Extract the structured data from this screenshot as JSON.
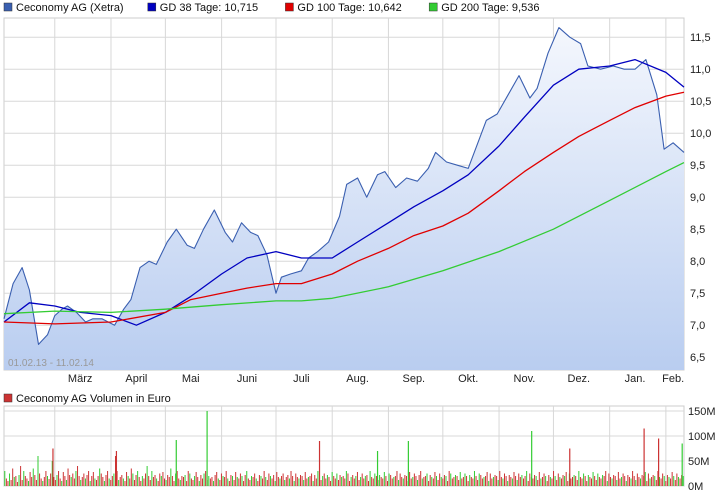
{
  "chart_data": [
    {
      "type": "line",
      "legend": [
        {
          "label": "Ceconomy AG (Xetra)",
          "color": "#3a5fb0"
        },
        {
          "label": "GD 38 Tage: 10,715",
          "color": "#0000c0"
        },
        {
          "label": "GD 100 Tage: 10,642",
          "color": "#e00000"
        },
        {
          "label": "GD 200 Tage: 9,536",
          "color": "#33cc33"
        }
      ],
      "date_range_label": "01.02.13 - 11.02.14",
      "x_ticks": [
        "März",
        "April",
        "Mai",
        "Juni",
        "Juli",
        "Aug.",
        "Sep.",
        "Okt.",
        "Nov.",
        "Dez.",
        "Jan.",
        "Feb."
      ],
      "y_ticks": [
        "6,5",
        "7,0",
        "7,5",
        "8,0",
        "8,5",
        "9,0",
        "9,5",
        "10,0",
        "10,5",
        "11,0",
        "11,5"
      ],
      "ylim": [
        6.3,
        11.8
      ],
      "grid": true,
      "series": [
        {
          "name": "Ceconomy AG (Xetra)",
          "color": "#3a5fb0",
          "x": [
            "2013-02-01",
            "2013-02-06",
            "2013-02-11",
            "2013-02-15",
            "2013-02-20",
            "2013-02-25",
            "2013-03-01",
            "2013-03-05",
            "2013-03-08",
            "2013-03-13",
            "2013-03-18",
            "2013-03-22",
            "2013-03-27",
            "2013-04-03",
            "2013-04-08",
            "2013-04-12",
            "2013-04-17",
            "2013-04-22",
            "2013-04-26",
            "2013-05-02",
            "2013-05-07",
            "2013-05-13",
            "2013-05-17",
            "2013-05-22",
            "2013-05-28",
            "2013-06-03",
            "2013-06-07",
            "2013-06-12",
            "2013-06-17",
            "2013-06-21",
            "2013-06-26",
            "2013-07-01",
            "2013-07-04",
            "2013-07-09",
            "2013-07-15",
            "2013-07-19",
            "2013-07-24",
            "2013-07-30",
            "2013-08-05",
            "2013-08-09",
            "2013-08-15",
            "2013-08-20",
            "2013-08-26",
            "2013-08-30",
            "2013-09-05",
            "2013-09-11",
            "2013-09-17",
            "2013-09-23",
            "2013-09-27",
            "2013-10-03",
            "2013-10-09",
            "2013-10-15",
            "2013-10-21",
            "2013-10-25",
            "2013-10-31",
            "2013-11-06",
            "2013-11-12",
            "2013-11-18",
            "2013-11-22",
            "2013-11-28",
            "2013-12-04",
            "2013-12-10",
            "2013-12-16",
            "2013-12-20",
            "2013-12-27",
            "2014-01-03",
            "2014-01-09",
            "2014-01-15",
            "2014-01-21",
            "2014-01-27",
            "2014-01-31",
            "2014-02-05",
            "2014-02-11"
          ],
          "values": [
            7.1,
            7.65,
            7.9,
            7.55,
            6.7,
            6.85,
            7.15,
            7.25,
            7.3,
            7.2,
            7.05,
            7.1,
            7.1,
            7.0,
            7.25,
            7.4,
            7.9,
            8.0,
            7.95,
            8.3,
            8.5,
            8.25,
            8.2,
            8.5,
            8.8,
            8.45,
            8.3,
            8.6,
            8.45,
            8.4,
            8.1,
            7.5,
            7.75,
            7.8,
            7.85,
            8.05,
            8.15,
            8.3,
            8.7,
            9.2,
            9.3,
            9.0,
            9.35,
            9.4,
            9.15,
            9.3,
            9.25,
            9.45,
            9.7,
            9.55,
            9.5,
            9.45,
            9.9,
            10.2,
            10.3,
            10.6,
            10.9,
            10.55,
            10.7,
            11.25,
            11.65,
            11.5,
            11.4,
            11.05,
            11.0,
            11.05,
            11.0,
            11.0,
            11.15,
            10.6,
            9.75,
            9.85,
            9.7
          ]
        },
        {
          "name": "GD 38 Tage: 10,715",
          "color": "#0000c0",
          "x": [
            "2013-02-01",
            "2013-02-15",
            "2013-03-01",
            "2013-03-15",
            "2013-04-01",
            "2013-04-15",
            "2013-05-01",
            "2013-05-15",
            "2013-06-01",
            "2013-06-15",
            "2013-07-01",
            "2013-07-15",
            "2013-08-01",
            "2013-08-15",
            "2013-09-01",
            "2013-09-15",
            "2013-10-01",
            "2013-10-15",
            "2013-11-01",
            "2013-11-15",
            "2013-12-01",
            "2013-12-15",
            "2014-01-01",
            "2014-01-15",
            "2014-02-01",
            "2014-02-11"
          ],
          "values": [
            7.05,
            7.35,
            7.3,
            7.2,
            7.15,
            7.0,
            7.2,
            7.45,
            7.8,
            8.05,
            8.15,
            8.05,
            8.05,
            8.3,
            8.6,
            8.85,
            9.1,
            9.35,
            9.8,
            10.25,
            10.75,
            11.0,
            11.05,
            11.15,
            10.95,
            10.72
          ]
        },
        {
          "name": "GD 100 Tage: 10,642",
          "color": "#e00000",
          "x": [
            "2013-02-01",
            "2013-03-01",
            "2013-04-01",
            "2013-05-01",
            "2013-05-15",
            "2013-06-01",
            "2013-06-15",
            "2013-07-01",
            "2013-07-15",
            "2013-08-01",
            "2013-08-15",
            "2013-09-01",
            "2013-09-15",
            "2013-10-01",
            "2013-10-15",
            "2013-11-01",
            "2013-11-15",
            "2013-12-01",
            "2013-12-15",
            "2014-01-01",
            "2014-01-15",
            "2014-02-01",
            "2014-02-11"
          ],
          "values": [
            7.05,
            7.02,
            7.05,
            7.2,
            7.4,
            7.5,
            7.58,
            7.65,
            7.65,
            7.8,
            8.0,
            8.2,
            8.4,
            8.55,
            8.75,
            9.1,
            9.4,
            9.7,
            9.95,
            10.2,
            10.4,
            10.58,
            10.64
          ]
        },
        {
          "name": "GD 200 Tage: 9,536",
          "color": "#33cc33",
          "x": [
            "2013-02-01",
            "2013-03-01",
            "2013-04-01",
            "2013-05-01",
            "2013-06-01",
            "2013-07-01",
            "2013-07-15",
            "2013-08-01",
            "2013-09-01",
            "2013-10-01",
            "2013-11-01",
            "2013-12-01",
            "2014-01-01",
            "2014-02-01",
            "2014-02-11"
          ],
          "values": [
            7.18,
            7.22,
            7.2,
            7.25,
            7.32,
            7.38,
            7.38,
            7.42,
            7.6,
            7.85,
            8.15,
            8.5,
            8.95,
            9.4,
            9.54
          ]
        }
      ]
    },
    {
      "type": "bar",
      "legend": [
        {
          "label": "Ceconomy AG Volumen in Euro",
          "color": "#cc3333"
        }
      ],
      "y_ticks": [
        "0M",
        "50M",
        "100M",
        "150M"
      ],
      "ylim": [
        0,
        160
      ],
      "grid": true,
      "up_color": "#33cc33",
      "down_color": "#cc3333",
      "x_range": [
        "2013-02-01",
        "2014-02-11"
      ],
      "values": [
        30,
        15,
        10,
        25,
        12,
        35,
        18,
        20,
        8,
        22,
        40,
        12,
        30,
        20,
        15,
        10,
        28,
        18,
        35,
        22,
        12,
        60,
        25,
        15,
        10,
        18,
        30,
        20,
        14,
        25,
        50,
        18,
        12,
        22,
        30,
        15,
        10,
        28,
        20,
        12,
        35,
        22,
        18,
        25,
        15,
        30,
        40,
        20,
        12,
        18,
        25,
        15,
        22,
        30,
        10,
        20,
        28,
        15,
        12,
        20,
        35,
        25,
        18,
        10,
        22,
        30,
        15,
        12,
        20,
        25,
        60,
        30,
        12,
        18,
        22,
        15,
        10,
        28,
        20,
        15,
        35,
        25,
        12,
        22,
        30,
        18,
        10,
        20,
        15,
        25,
        40,
        20,
        12,
        30,
        18,
        22,
        15,
        10,
        25,
        20,
        28,
        15,
        12,
        22,
        18,
        35,
        20,
        10,
        25,
        30,
        15,
        12,
        20,
        18,
        22,
        10,
        30,
        25,
        15,
        12,
        20,
        28,
        18,
        10,
        22,
        15,
        25,
        30,
        12,
        20,
        15,
        18,
        10,
        22,
        28,
        15,
        12,
        25,
        20,
        18,
        30,
        15,
        10,
        22,
        20,
        12,
        28,
        18,
        15,
        25,
        20,
        10,
        22,
        30,
        15,
        12,
        20,
        18,
        25,
        15,
        10,
        22,
        20,
        15,
        30,
        18,
        12,
        25,
        20,
        15,
        22,
        10,
        28,
        18,
        15,
        20,
        25,
        12,
        18,
        22,
        15,
        30,
        20,
        10,
        25,
        18,
        15,
        22,
        20,
        12,
        28,
        15,
        18,
        20,
        25,
        10,
        22,
        15,
        30,
        18,
        12,
        20,
        25,
        15,
        22,
        18,
        10,
        28,
        20,
        15,
        25,
        12,
        22,
        18,
        20,
        15,
        30,
        25,
        10,
        18,
        22,
        15,
        20,
        28,
        12,
        18,
        25,
        15,
        20,
        22,
        10,
        30,
        18,
        15,
        25,
        20,
        12,
        22,
        18,
        15,
        28,
        20,
        10,
        25,
        22,
        15,
        18,
        20,
        30,
        12,
        25,
        18,
        15,
        22,
        20,
        10,
        28,
        15,
        18,
        25,
        20,
        12,
        22,
        30,
        15,
        18,
        20,
        25,
        10,
        22,
        18,
        15,
        28,
        20,
        12,
        25,
        18,
        15,
        22,
        20,
        10,
        30,
        25,
        15,
        18,
        22,
        20,
        12,
        28,
        15,
        18,
        25,
        20,
        10,
        22,
        18,
        15,
        30,
        20,
        12,
        25,
        22,
        15,
        18,
        20,
        28,
        10,
        25,
        15,
        18,
        22,
        20,
        12,
        30,
        18,
        15,
        25,
        20,
        10,
        22,
        18,
        15,
        28,
        20,
        12,
        25,
        18,
        22,
        15,
        20,
        30,
        10,
        25,
        18,
        15,
        22,
        20,
        12,
        28,
        15,
        18,
        25,
        20,
        10,
        22,
        18,
        15,
        30,
        20,
        12,
        25,
        18,
        15,
        22,
        20,
        28,
        10,
        25,
        15,
        18,
        22,
        20,
        12,
        30,
        18,
        15,
        25,
        20,
        10,
        22,
        18,
        15,
        28,
        20,
        12,
        25,
        18,
        15,
        22,
        20,
        30,
        10,
        25,
        18,
        15,
        22,
        20,
        12,
        28,
        15,
        18,
        25,
        20,
        10,
        22,
        18,
        15,
        30,
        20,
        12,
        25,
        18,
        15,
        22,
        20,
        28,
        10,
        25,
        15,
        18,
        22,
        20,
        12,
        30,
        18,
        15,
        25,
        20,
        10,
        22,
        18,
        15,
        28,
        20,
        12,
        25,
        18,
        15,
        22,
        20
      ],
      "spikes": [
        {
          "date": "2013-05-24",
          "value": 150
        },
        {
          "date": "2014-01-20",
          "value": 115
        },
        {
          "date": "2013-11-19",
          "value": 110
        },
        {
          "date": "2013-07-25",
          "value": 90
        },
        {
          "date": "2013-09-12",
          "value": 90
        },
        {
          "date": "2013-02-28",
          "value": 75
        },
        {
          "date": "2014-02-10",
          "value": 85
        },
        {
          "date": "2013-12-10",
          "value": 75
        },
        {
          "date": "2013-05-07",
          "value": 92
        },
        {
          "date": "2014-01-28",
          "value": 95
        },
        {
          "date": "2013-08-26",
          "value": 70
        },
        {
          "date": "2013-04-04",
          "value": 70
        }
      ]
    }
  ]
}
